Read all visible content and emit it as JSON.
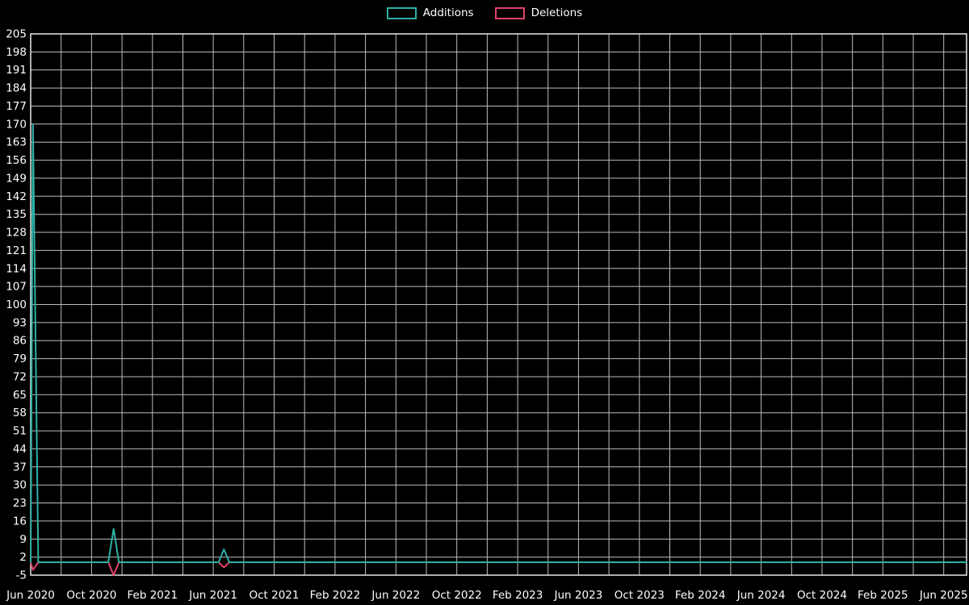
{
  "chart_data": {
    "type": "line",
    "title": "",
    "legend_position": "top-center",
    "grid": true,
    "colors": {
      "background": "#000000",
      "grid": "#bdbdbd",
      "border": "#e8e8e8",
      "text": "#ffffff"
    },
    "x_axis": {
      "label": "",
      "unit": "months since Jun 2020",
      "range_months": [
        0,
        61.5
      ],
      "grid_month_step": 2,
      "tick_month_offsets": [
        0,
        4,
        8,
        12,
        16,
        20,
        24,
        28,
        32,
        36,
        40,
        44,
        48,
        52,
        56,
        60
      ],
      "tick_labels": [
        "Jun 2020",
        "Oct 2020",
        "Feb 2021",
        "Jun 2021",
        "Oct 2021",
        "Feb 2022",
        "Jun 2022",
        "Oct 2022",
        "Feb 2023",
        "Jun 2023",
        "Oct 2023",
        "Feb 2024",
        "Jun 2024",
        "Oct 2024",
        "Feb 2025",
        "Jun 2025"
      ]
    },
    "y_axis": {
      "label": "",
      "range": [
        -5,
        205
      ],
      "ticks": [
        -5,
        2,
        9,
        16,
        23,
        30,
        37,
        44,
        51,
        58,
        65,
        72,
        79,
        86,
        93,
        100,
        107,
        114,
        121,
        128,
        135,
        142,
        149,
        156,
        163,
        170,
        177,
        184,
        191,
        198,
        205
      ]
    },
    "series": [
      {
        "name": "Additions",
        "color": "#2cb1a4",
        "points": [
          [
            0,
            0
          ],
          [
            0.15,
            170
          ],
          [
            0.5,
            0
          ],
          [
            5.1,
            0
          ],
          [
            5.45,
            13
          ],
          [
            5.8,
            0
          ],
          [
            12.35,
            0
          ],
          [
            12.7,
            5
          ],
          [
            13.05,
            0
          ],
          [
            61.5,
            0
          ]
        ]
      },
      {
        "name": "Deletions",
        "color": "#e0436a",
        "points": [
          [
            0,
            0
          ],
          [
            0.15,
            -3
          ],
          [
            0.5,
            0
          ],
          [
            5.1,
            0
          ],
          [
            5.45,
            -5
          ],
          [
            5.8,
            0
          ],
          [
            12.35,
            0
          ],
          [
            12.7,
            -2
          ],
          [
            13.05,
            0
          ],
          [
            61.5,
            0
          ]
        ]
      }
    ]
  }
}
